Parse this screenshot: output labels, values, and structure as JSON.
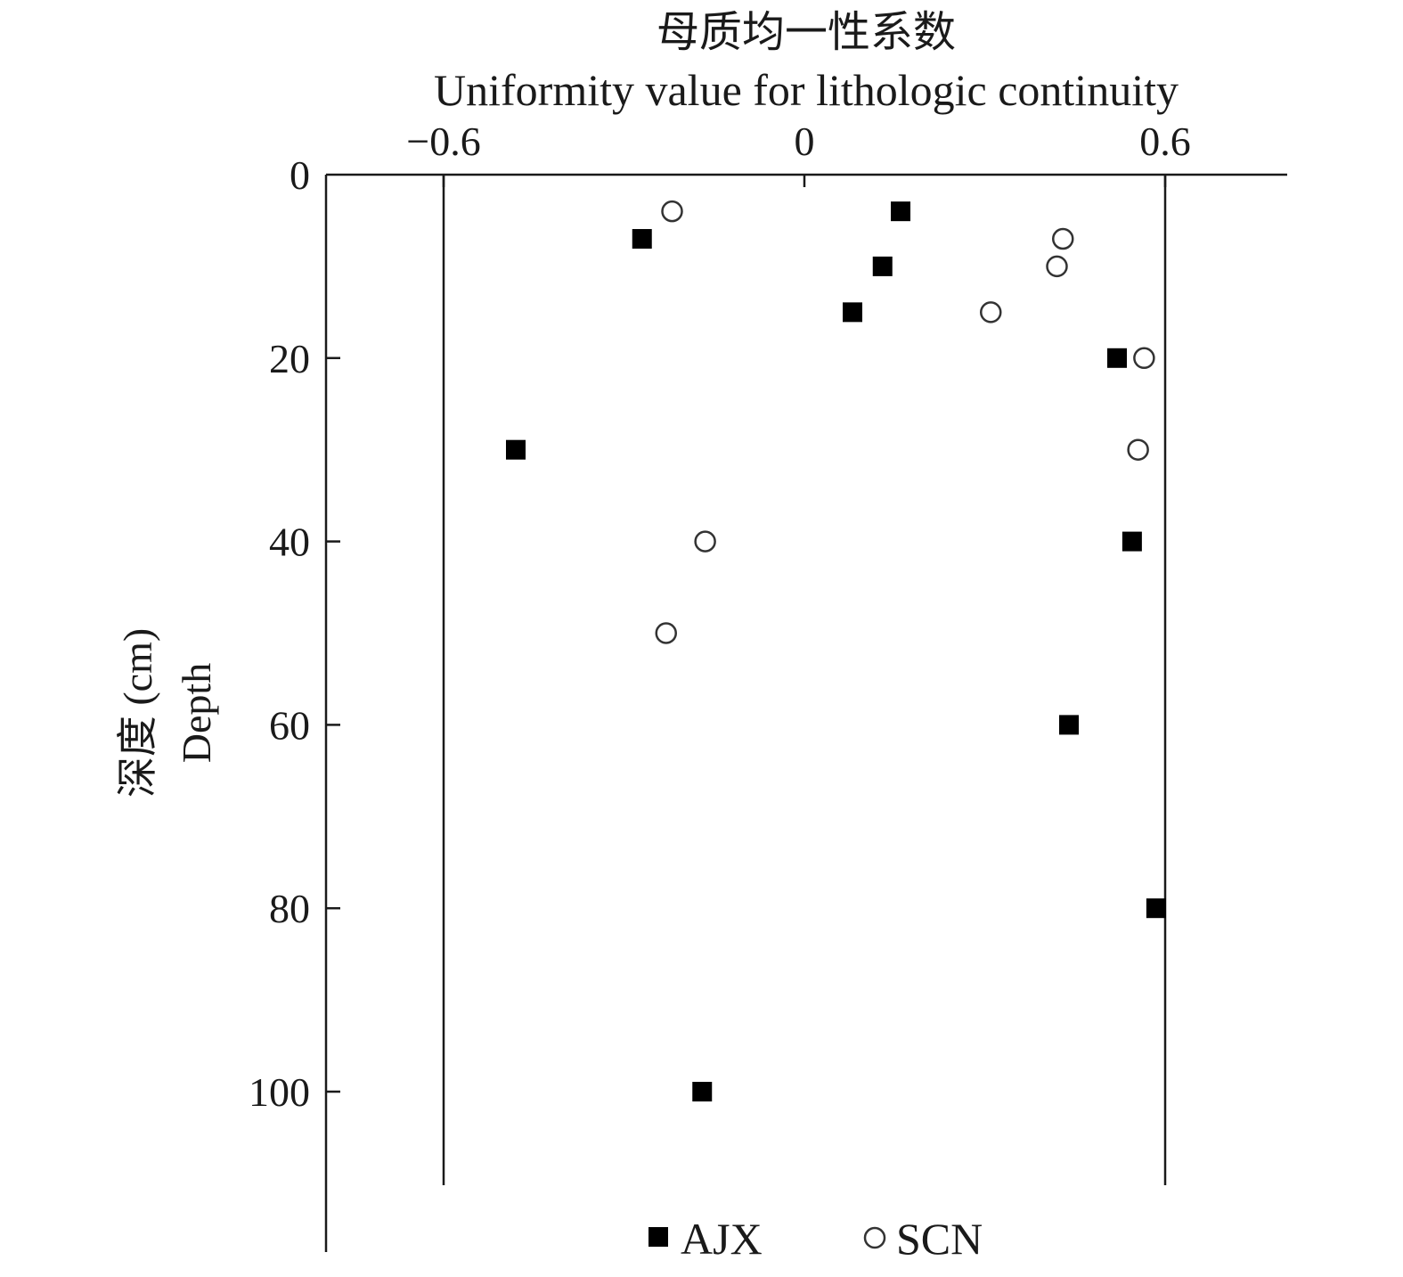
{
  "chart_data": {
    "type": "scatter",
    "title": "母质均一性系数",
    "subtitle": "Uniformity value for lithologic continuity",
    "ylabel_cn": "深度 (cm)",
    "ylabel": "Depth",
    "x_axis_position": "top",
    "y_axis_inverted": true,
    "xlim": [
      -0.8,
      0.8
    ],
    "ylim": [
      0,
      110
    ],
    "x_ticks": [
      -0.6,
      0,
      0.6
    ],
    "x_tick_labels": [
      "−0.6",
      "0",
      "0.6"
    ],
    "y_ticks": [
      0,
      20,
      40,
      60,
      80,
      100
    ],
    "y_tick_labels": [
      "0",
      "20",
      "40",
      "60",
      "80",
      "100"
    ],
    "reference_lines_x": [
      -0.6,
      0.6
    ],
    "grid": false,
    "legend_position": "bottom",
    "series": [
      {
        "name": "AJX",
        "marker": "filled-square",
        "color": "#000000",
        "points": [
          {
            "x": 0.16,
            "y": 4
          },
          {
            "x": -0.27,
            "y": 7
          },
          {
            "x": 0.13,
            "y": 10
          },
          {
            "x": 0.08,
            "y": 15
          },
          {
            "x": 0.52,
            "y": 20
          },
          {
            "x": -0.48,
            "y": 30
          },
          {
            "x": 0.545,
            "y": 40
          },
          {
            "x": 0.44,
            "y": 60
          },
          {
            "x": 0.585,
            "y": 80
          },
          {
            "x": -0.17,
            "y": 100
          }
        ]
      },
      {
        "name": "SCN",
        "marker": "open-circle",
        "color": "#333333",
        "points": [
          {
            "x": -0.22,
            "y": 4
          },
          {
            "x": 0.43,
            "y": 7
          },
          {
            "x": 0.42,
            "y": 10
          },
          {
            "x": 0.31,
            "y": 15
          },
          {
            "x": 0.565,
            "y": 20
          },
          {
            "x": 0.555,
            "y": 30
          },
          {
            "x": -0.165,
            "y": 40
          },
          {
            "x": -0.23,
            "y": 50
          }
        ]
      }
    ]
  }
}
